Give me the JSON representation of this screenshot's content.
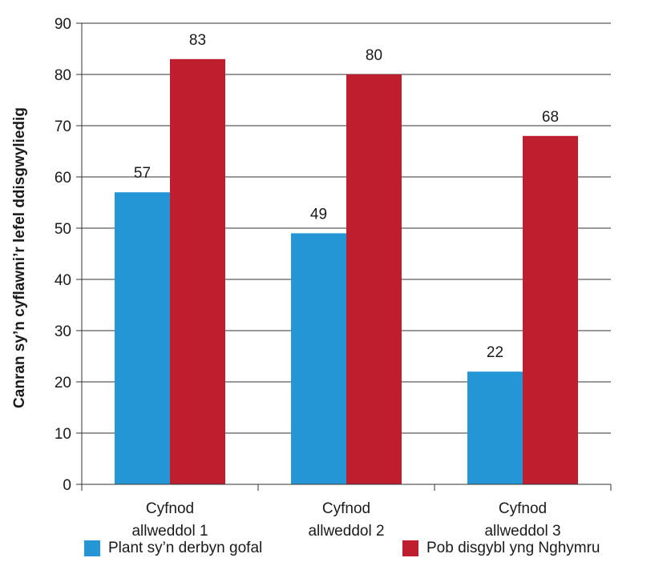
{
  "chart_data": {
    "type": "bar",
    "categories": [
      [
        "Cyfnod",
        "allweddol 1"
      ],
      [
        "Cyfnod",
        "allweddol 2"
      ],
      [
        "Cyfnod",
        "allweddol 3"
      ]
    ],
    "series": [
      {
        "name": "Plant sy’n derbyn gofal",
        "color": "#2496d6",
        "values": [
          57,
          49,
          22
        ]
      },
      {
        "name": "Pob disgybl yng Nghymru",
        "color": "#be1e2d",
        "values": [
          83,
          80,
          68
        ]
      }
    ],
    "ylabel": "Canran sy’n cyflawni’r lefel ddisgwyliedig",
    "ylim": [
      0,
      90
    ],
    "yticks": [
      0,
      10,
      20,
      30,
      40,
      50,
      60,
      70,
      80,
      90
    ],
    "grid": true,
    "legend_position": "bottom"
  }
}
